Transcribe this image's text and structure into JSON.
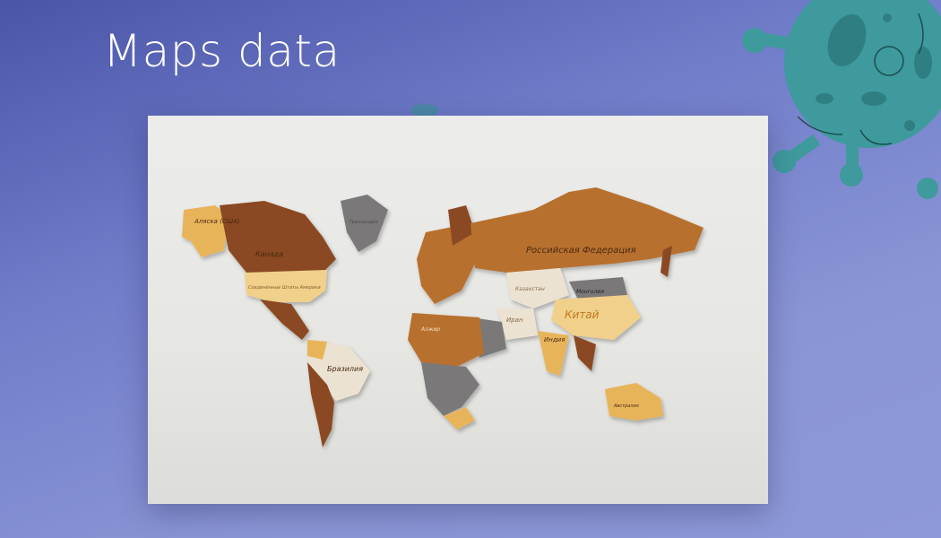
{
  "slide": {
    "title": "Maps data"
  },
  "photo": {
    "description_labels": {
      "alaska": "Аляска (США)",
      "canada": "Канада",
      "usa": "Соединённые Штаты Америки",
      "russia": "Российская Федерация",
      "kazakhstan": "Казахстан",
      "mongolia": "Монголия",
      "china": "Китай",
      "iran": "Иран",
      "india": "Индия",
      "brazil": "Бразилия",
      "algeria": "Алжир",
      "australia": "Австралия",
      "greenland": "Гренландия"
    }
  },
  "colors": {
    "accent_teal": "#3e9a9c",
    "wood_dark": "#8a4a22",
    "wood_mid": "#b8702e",
    "wood_light": "#e8b45a",
    "wood_pale": "#f0d08a",
    "gray": "#7a7878"
  },
  "icons": [
    "virus-icon"
  ]
}
